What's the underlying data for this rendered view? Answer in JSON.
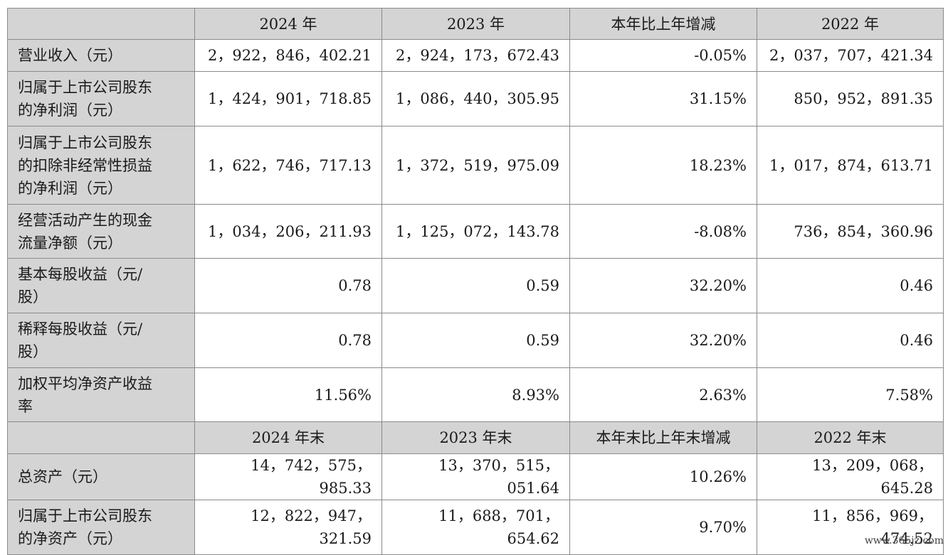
{
  "header1": [
    "",
    "2024 年",
    "2023 年",
    "本年比上年增减",
    "2022 年"
  ],
  "rows1": [
    {
      "label": "营业收入（元）",
      "values": [
        "2，922，846，402.21",
        "2，924，173，672.43",
        "-0.05%",
        "2，037，707，421.34"
      ]
    },
    {
      "label": "归属于上市公司股东\n的净利润（元）",
      "values": [
        "1，424，901，718.85",
        "1，086，440，305.95",
        "31.15%",
        "850，952，891.35"
      ]
    },
    {
      "label": "归属于上市公司股东\n的扣除非经常性损益\n的净利润（元）",
      "values": [
        "1，622，746，717.13",
        "1，372，519，975.09",
        "18.23%",
        "1，017，874，613.71"
      ]
    },
    {
      "label": "经营活动产生的现金\n流量净额（元）",
      "values": [
        "1，034，206，211.93",
        "1，125，072，143.78",
        "-8.08%",
        "736，854，360.96"
      ]
    },
    {
      "label": "基本每股收益（元/\n股）",
      "values": [
        "0.78",
        "0.59",
        "32.20%",
        "0.46"
      ]
    },
    {
      "label": "稀释每股收益（元/\n股）",
      "values": [
        "0.78",
        "0.59",
        "32.20%",
        "0.46"
      ]
    },
    {
      "label": "加权平均净资产收益\n率",
      "values": [
        "11.56%",
        "8.93%",
        "2.63%",
        "7.58%"
      ]
    }
  ],
  "header2": [
    "",
    "2024 年末",
    "2023 年末",
    "本年末比上年末增减",
    "2022 年末"
  ],
  "rows2": [
    {
      "label": "总资产（元）",
      "values": [
        "14，742，575，985.33",
        "13，370，515，051.64",
        "10.26%",
        "13，209，068，645.28"
      ]
    },
    {
      "label": "归属于上市公司股东\n的净资产（元）",
      "values": [
        "12，822，947，321.59",
        "11，688，701，654.62",
        "9.70%",
        "11，856，969，474.52"
      ]
    }
  ],
  "watermark": "www.365jz.com"
}
